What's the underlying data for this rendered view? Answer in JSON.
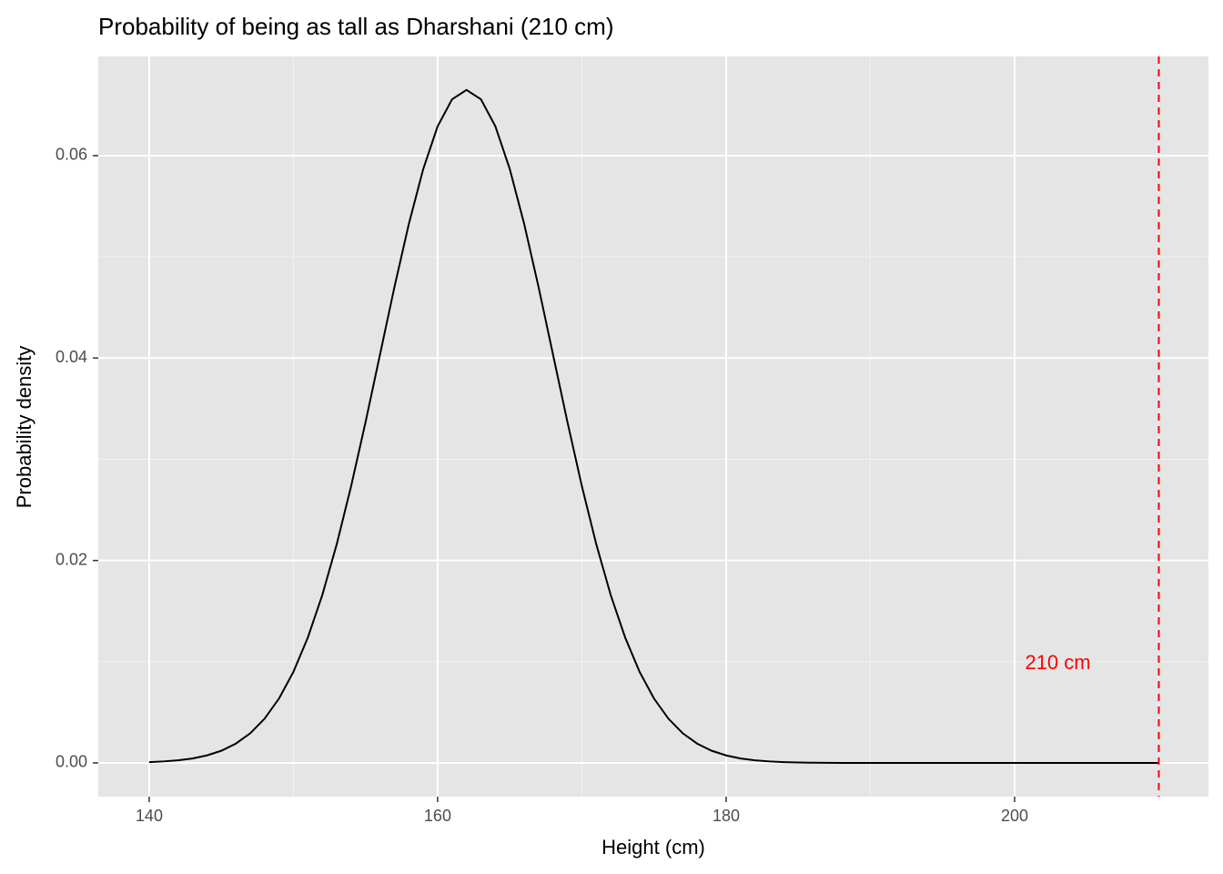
{
  "chart_data": {
    "type": "line",
    "title": "Probability of being as tall as Dharshani (210 cm)",
    "x_label": "Height (cm)",
    "y_label": "Probability density",
    "x": [
      140,
      141,
      142,
      143,
      144,
      145,
      146,
      147,
      148,
      149,
      150,
      151,
      152,
      153,
      154,
      155,
      156,
      157,
      158,
      159,
      160,
      161,
      162,
      163,
      164,
      165,
      166,
      167,
      168,
      169,
      170,
      171,
      172,
      173,
      174,
      175,
      176,
      177,
      178,
      179,
      180,
      181,
      182,
      183,
      184,
      185,
      186,
      187,
      188,
      189,
      190,
      191,
      192,
      193,
      194,
      195,
      196,
      197,
      198,
      199,
      200,
      201,
      202,
      203,
      204,
      205,
      206,
      207,
      208,
      209,
      210
    ],
    "values": [
      8e-05,
      0.00015,
      0.00026,
      0.00044,
      0.00074,
      0.0012,
      0.0019,
      0.00292,
      0.00437,
      0.00636,
      0.009,
      0.01239,
      0.01658,
      0.02159,
      0.02734,
      0.03367,
      0.04033,
      0.04699,
      0.05324,
      0.05868,
      0.0629,
      0.06557,
      0.06649,
      0.06557,
      0.0629,
      0.05868,
      0.05324,
      0.04699,
      0.04033,
      0.03367,
      0.02734,
      0.02159,
      0.01658,
      0.01239,
      0.009,
      0.00636,
      0.00437,
      0.00292,
      0.0019,
      0.0012,
      0.00074,
      0.00044,
      0.00026,
      0.00015,
      8e-05,
      4e-05,
      2e-05,
      1e-05,
      0,
      0,
      0,
      0,
      0,
      0,
      0,
      0,
      0,
      0,
      0,
      0,
      0,
      0,
      0,
      0,
      0,
      0,
      0,
      0,
      0,
      0,
      0
    ],
    "color": "#000000",
    "xlim": [
      136.47,
      213.44
    ],
    "ylim": [
      -0.00333,
      0.0698
    ],
    "xticks": [
      140,
      160,
      180,
      200
    ],
    "yticks": [
      {
        "value": 0,
        "label": "0.00"
      },
      {
        "value": 0.02,
        "label": "0.02"
      },
      {
        "value": 0.04,
        "label": "0.04"
      },
      {
        "value": 0.06,
        "label": "0.06"
      }
    ],
    "x_minor_grid": [
      150,
      170,
      190,
      210
    ],
    "y_minor_grid": [
      0.01,
      0.03,
      0.05
    ],
    "grid": true,
    "vline": {
      "x": 210,
      "color": "#ff0000"
    },
    "annotation": {
      "text": "210 cm",
      "x": 203,
      "y": 0.0098,
      "color": "#ff0000"
    }
  }
}
